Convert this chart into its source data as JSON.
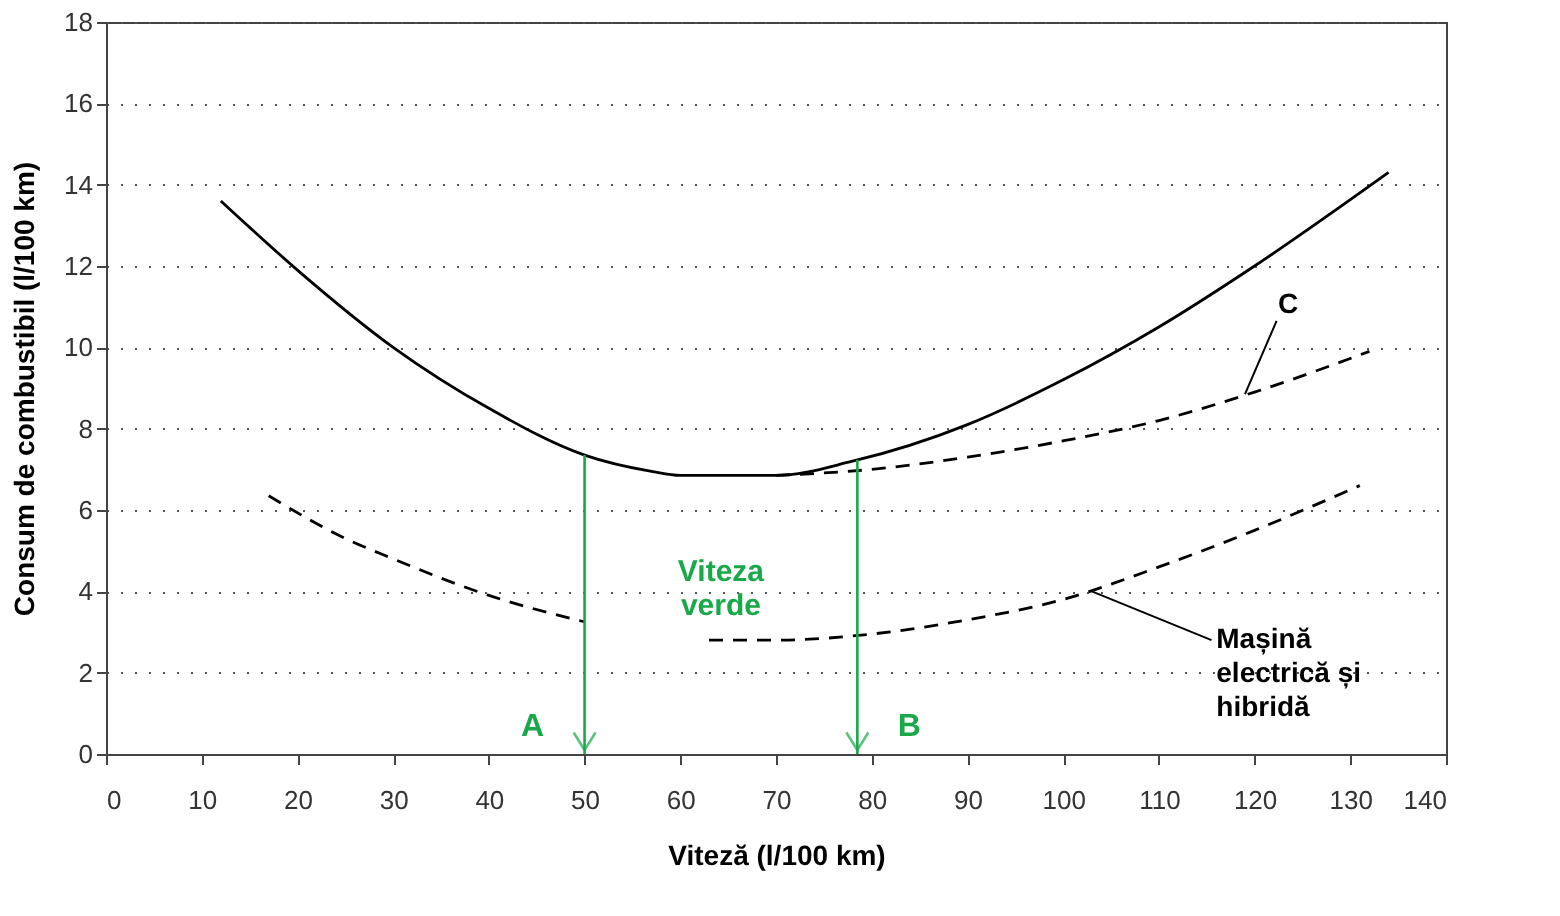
{
  "chart_data": {
    "type": "line",
    "xlabel": "Viteză (l/100 km)",
    "ylabel": "Consum de combustibil (l/100 km)",
    "xlim": [
      0,
      140
    ],
    "xticks": [
      0,
      10,
      20,
      30,
      40,
      50,
      60,
      70,
      80,
      90,
      100,
      110,
      120,
      130,
      140
    ],
    "ylim": [
      0,
      18
    ],
    "yticks": [
      0,
      2,
      4,
      6,
      8,
      10,
      12,
      14,
      16,
      18
    ],
    "grid": "y",
    "marker": "none",
    "series": [
      {
        "color": "#000000",
        "line_style": "solid",
        "x": [
          12,
          20,
          30,
          40,
          50,
          57,
          60,
          70,
          78,
          90,
          100,
          110,
          120,
          134
        ],
        "values": [
          13.6,
          11.9,
          10.0,
          8.5,
          7.35,
          6.95,
          6.85,
          6.85,
          7.2,
          8.1,
          9.2,
          10.5,
          12.0,
          14.3
        ]
      },
      {
        "color": "#000000",
        "line_style": "dashed",
        "x": [
          70,
          80,
          90,
          100,
          110,
          120,
          132
        ],
        "values": [
          6.85,
          7.0,
          7.3,
          7.7,
          8.2,
          8.9,
          9.9
        ]
      },
      {
        "color": "#000000",
        "line_style": "dashed",
        "x": [
          17,
          25,
          30,
          40,
          50,
          56,
          63,
          70,
          80,
          90,
          100,
          110,
          120,
          131
        ],
        "values": [
          6.35,
          5.3,
          4.8,
          3.9,
          3.25,
          null,
          2.8,
          2.8,
          2.95,
          3.3,
          3.8,
          4.6,
          5.5,
          6.6
        ]
      }
    ],
    "ref_lines": [
      {
        "axis": "x",
        "value": 50,
        "label": "A",
        "color": "#1aa84a"
      },
      {
        "axis": "x",
        "value": 78.5,
        "label": "B",
        "color": "#1aa84a"
      }
    ],
    "annotations": [
      "Viteza\nverde",
      {
        "text": "C",
        "x": 119,
        "y": 8.85
      },
      {
        "text": "Mașină\nelectrică și\nhibridă",
        "x": 103,
        "y": 4.0
      }
    ]
  }
}
